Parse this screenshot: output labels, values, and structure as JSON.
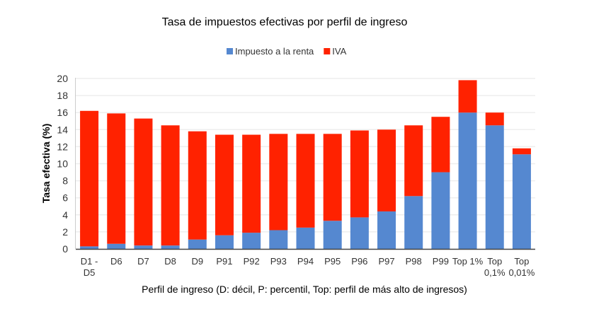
{
  "chart_data": {
    "type": "bar",
    "stacked": true,
    "title": "Tasa de impuestos efectivas por perfil de ingreso",
    "xlabel": "Perfil de ingreso (D: décil, P: percentil, Top: perfil de más alto de ingresos)",
    "ylabel": "Tasa efectiva (%)",
    "ylim": [
      0,
      20
    ],
    "yticks": [
      0,
      2,
      4,
      6,
      8,
      10,
      12,
      14,
      16,
      18,
      20
    ],
    "grid": true,
    "legend_placement": "top",
    "categories": [
      [
        "D1 -",
        "D5"
      ],
      [
        "D6"
      ],
      [
        "D7"
      ],
      [
        "D8"
      ],
      [
        "D9"
      ],
      [
        "P91"
      ],
      [
        "P92"
      ],
      [
        "P93"
      ],
      [
        "P94"
      ],
      [
        "P95"
      ],
      [
        "P96"
      ],
      [
        "P97"
      ],
      [
        "P98"
      ],
      [
        "P99"
      ],
      [
        "Top 1%"
      ],
      [
        "Top",
        "0,1%"
      ],
      [
        "Top",
        "0,01%"
      ]
    ],
    "series": [
      {
        "name": "Impuesto a la renta",
        "color": "#5588d0",
        "values": [
          0.3,
          0.6,
          0.4,
          0.4,
          1.1,
          1.6,
          1.9,
          2.2,
          2.5,
          3.3,
          3.7,
          4.4,
          6.2,
          9.0,
          16.0,
          14.5,
          11.1
        ]
      },
      {
        "name": "IVA",
        "color": "#ff2200",
        "values": [
          15.9,
          15.3,
          14.9,
          14.1,
          12.7,
          11.8,
          11.5,
          11.3,
          11.0,
          10.2,
          10.2,
          9.6,
          8.3,
          6.5,
          3.8,
          1.5,
          0.7
        ]
      }
    ]
  }
}
